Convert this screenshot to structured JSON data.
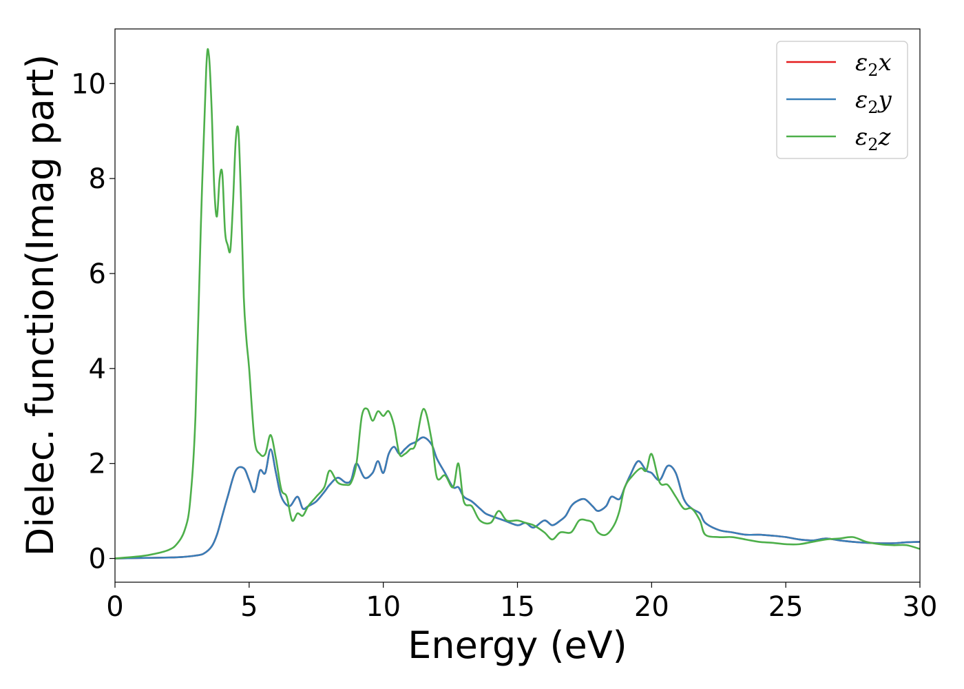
{
  "chart_data": {
    "type": "line",
    "title": "",
    "xlabel": "Energy (eV)",
    "ylabel": "Dielec. function(Imag part)",
    "xlim": [
      0,
      30
    ],
    "ylim": [
      -0.5,
      11.15
    ],
    "xticks": [
      0,
      5,
      10,
      15,
      20,
      25,
      30
    ],
    "yticks": [
      0,
      2,
      4,
      6,
      8,
      10
    ],
    "grid": false,
    "legend": "top-right",
    "legend_entries": [
      {
        "base": "ε",
        "sub": "2",
        "var": "x",
        "color": "#e41a1c"
      },
      {
        "base": "ε",
        "sub": "2",
        "var": "y",
        "color": "#377eb8"
      },
      {
        "base": "ε",
        "sub": "2",
        "var": "z",
        "color": "#4daf4a"
      }
    ],
    "series": [
      {
        "name": "ε2x",
        "color": "#e41a1c",
        "x": [
          0,
          1,
          2,
          2.5,
          3,
          3.3,
          3.6,
          3.8,
          4,
          4.2,
          4.5,
          4.8,
          5,
          5.2,
          5.4,
          5.6,
          5.8,
          6,
          6.2,
          6.5,
          6.8,
          7,
          7.2,
          7.5,
          7.8,
          8,
          8.3,
          8.6,
          8.8,
          9,
          9.3,
          9.6,
          9.8,
          10,
          10.2,
          10.4,
          10.6,
          10.8,
          11,
          11.2,
          11.5,
          11.8,
          12,
          12.3,
          12.6,
          12.8,
          13,
          13.3,
          13.6,
          13.8,
          14,
          14.5,
          15,
          15.3,
          15.6,
          16,
          16.3,
          16.6,
          16.8,
          17,
          17.2,
          17.5,
          17.8,
          18,
          18.3,
          18.5,
          18.8,
          19,
          19.2,
          19.5,
          19.8,
          20,
          20.3,
          20.6,
          20.9,
          21.2,
          21.5,
          21.8,
          22,
          22.5,
          23,
          23.5,
          24,
          24.5,
          25,
          25.5,
          26,
          26.5,
          27,
          27.5,
          28,
          28.5,
          29,
          29.5,
          30
        ],
        "values": [
          0,
          0.01,
          0.02,
          0.03,
          0.06,
          0.1,
          0.25,
          0.5,
          0.9,
          1.3,
          1.85,
          1.9,
          1.65,
          1.4,
          1.85,
          1.8,
          2.3,
          1.8,
          1.3,
          1.1,
          1.3,
          1.05,
          1.1,
          1.2,
          1.4,
          1.55,
          1.7,
          1.6,
          1.65,
          2,
          1.7,
          1.8,
          2.05,
          1.8,
          2.2,
          2.35,
          2.2,
          2.3,
          2.4,
          2.45,
          2.55,
          2.4,
          2.1,
          1.8,
          1.5,
          1.5,
          1.3,
          1.2,
          1.05,
          0.95,
          0.9,
          0.8,
          0.7,
          0.75,
          0.65,
          0.8,
          0.7,
          0.8,
          0.9,
          1.1,
          1.2,
          1.25,
          1.1,
          1,
          1.1,
          1.3,
          1.25,
          1.5,
          1.75,
          2.05,
          1.85,
          1.8,
          1.65,
          1.95,
          1.8,
          1.25,
          1.05,
          0.95,
          0.75,
          0.6,
          0.55,
          0.5,
          0.5,
          0.48,
          0.45,
          0.4,
          0.38,
          0.42,
          0.38,
          0.35,
          0.33,
          0.32,
          0.32,
          0.34,
          0.35
        ]
      },
      {
        "name": "ε2y",
        "color": "#377eb8",
        "x": [
          0,
          1,
          2,
          2.5,
          3,
          3.3,
          3.6,
          3.8,
          4,
          4.2,
          4.5,
          4.8,
          5,
          5.2,
          5.4,
          5.6,
          5.8,
          6,
          6.2,
          6.5,
          6.8,
          7,
          7.2,
          7.5,
          7.8,
          8,
          8.3,
          8.6,
          8.8,
          9,
          9.3,
          9.6,
          9.8,
          10,
          10.2,
          10.4,
          10.6,
          10.8,
          11,
          11.2,
          11.5,
          11.8,
          12,
          12.3,
          12.6,
          12.8,
          13,
          13.3,
          13.6,
          13.8,
          14,
          14.5,
          15,
          15.3,
          15.6,
          16,
          16.3,
          16.6,
          16.8,
          17,
          17.2,
          17.5,
          17.8,
          18,
          18.3,
          18.5,
          18.8,
          19,
          19.2,
          19.5,
          19.8,
          20,
          20.3,
          20.6,
          20.9,
          21.2,
          21.5,
          21.8,
          22,
          22.5,
          23,
          23.5,
          24,
          24.5,
          25,
          25.5,
          26,
          26.5,
          27,
          27.5,
          28,
          28.5,
          29,
          29.5,
          30
        ],
        "values": [
          0,
          0.01,
          0.02,
          0.03,
          0.06,
          0.1,
          0.25,
          0.5,
          0.9,
          1.3,
          1.85,
          1.9,
          1.65,
          1.4,
          1.85,
          1.8,
          2.3,
          1.8,
          1.3,
          1.1,
          1.3,
          1.05,
          1.1,
          1.2,
          1.4,
          1.55,
          1.7,
          1.6,
          1.65,
          2,
          1.7,
          1.8,
          2.05,
          1.8,
          2.2,
          2.35,
          2.2,
          2.3,
          2.4,
          2.45,
          2.55,
          2.4,
          2.1,
          1.8,
          1.5,
          1.5,
          1.3,
          1.2,
          1.05,
          0.95,
          0.9,
          0.8,
          0.7,
          0.75,
          0.65,
          0.8,
          0.7,
          0.8,
          0.9,
          1.1,
          1.2,
          1.25,
          1.1,
          1,
          1.1,
          1.3,
          1.25,
          1.5,
          1.75,
          2.05,
          1.85,
          1.8,
          1.65,
          1.95,
          1.8,
          1.25,
          1.05,
          0.95,
          0.75,
          0.6,
          0.55,
          0.5,
          0.5,
          0.48,
          0.45,
          0.4,
          0.38,
          0.42,
          0.38,
          0.35,
          0.33,
          0.32,
          0.32,
          0.34,
          0.35
        ]
      },
      {
        "name": "ε2z",
        "color": "#4daf4a",
        "x": [
          0,
          1,
          1.5,
          2,
          2.3,
          2.6,
          2.8,
          3,
          3.2,
          3.4,
          3.5,
          3.6,
          3.7,
          3.8,
          3.9,
          4,
          4.1,
          4.2,
          4.3,
          4.4,
          4.5,
          4.6,
          4.7,
          4.8,
          4.9,
          5,
          5.2,
          5.4,
          5.6,
          5.8,
          6,
          6.2,
          6.4,
          6.6,
          6.8,
          7,
          7.2,
          7.5,
          7.8,
          8,
          8.3,
          8.6,
          8.8,
          9,
          9.2,
          9.4,
          9.6,
          9.8,
          10,
          10.2,
          10.4,
          10.6,
          10.8,
          11,
          11.2,
          11.5,
          11.8,
          12,
          12.3,
          12.6,
          12.8,
          13,
          13.3,
          13.6,
          14,
          14.3,
          14.6,
          15,
          15.3,
          15.6,
          16,
          16.3,
          16.6,
          17,
          17.3,
          17.6,
          17.8,
          18,
          18.3,
          18.6,
          18.8,
          19,
          19.3,
          19.6,
          19.8,
          20,
          20.3,
          20.6,
          20.9,
          21.2,
          21.5,
          21.8,
          22,
          22.5,
          23,
          23.5,
          24,
          24.5,
          25,
          25.5,
          26,
          26.5,
          27,
          27.5,
          28,
          28.5,
          29,
          29.5,
          30
        ],
        "values": [
          0,
          0.05,
          0.1,
          0.18,
          0.3,
          0.6,
          1.2,
          3,
          7,
          10.3,
          10.6,
          9.5,
          7.8,
          7.2,
          8,
          8.1,
          6.9,
          6.6,
          6.5,
          7.5,
          8.8,
          9,
          7.5,
          5.5,
          4.6,
          4,
          2.5,
          2.2,
          2.2,
          2.6,
          2.1,
          1.45,
          1.3,
          0.8,
          0.95,
          0.9,
          1.1,
          1.3,
          1.5,
          1.85,
          1.6,
          1.55,
          1.6,
          2,
          3,
          3.15,
          2.9,
          3.1,
          3,
          3.1,
          2.8,
          2.2,
          2.2,
          2.3,
          2.4,
          3.15,
          2.5,
          1.7,
          1.75,
          1.5,
          2,
          1.2,
          1.1,
          0.8,
          0.75,
          1,
          0.8,
          0.8,
          0.75,
          0.7,
          0.55,
          0.4,
          0.55,
          0.55,
          0.8,
          0.8,
          0.75,
          0.55,
          0.5,
          0.7,
          1,
          1.5,
          1.75,
          1.9,
          1.85,
          2.2,
          1.6,
          1.55,
          1.3,
          1.05,
          1.05,
          0.8,
          0.5,
          0.45,
          0.45,
          0.4,
          0.35,
          0.33,
          0.3,
          0.3,
          0.35,
          0.4,
          0.42,
          0.45,
          0.35,
          0.3,
          0.28,
          0.28,
          0.2
        ]
      }
    ]
  }
}
